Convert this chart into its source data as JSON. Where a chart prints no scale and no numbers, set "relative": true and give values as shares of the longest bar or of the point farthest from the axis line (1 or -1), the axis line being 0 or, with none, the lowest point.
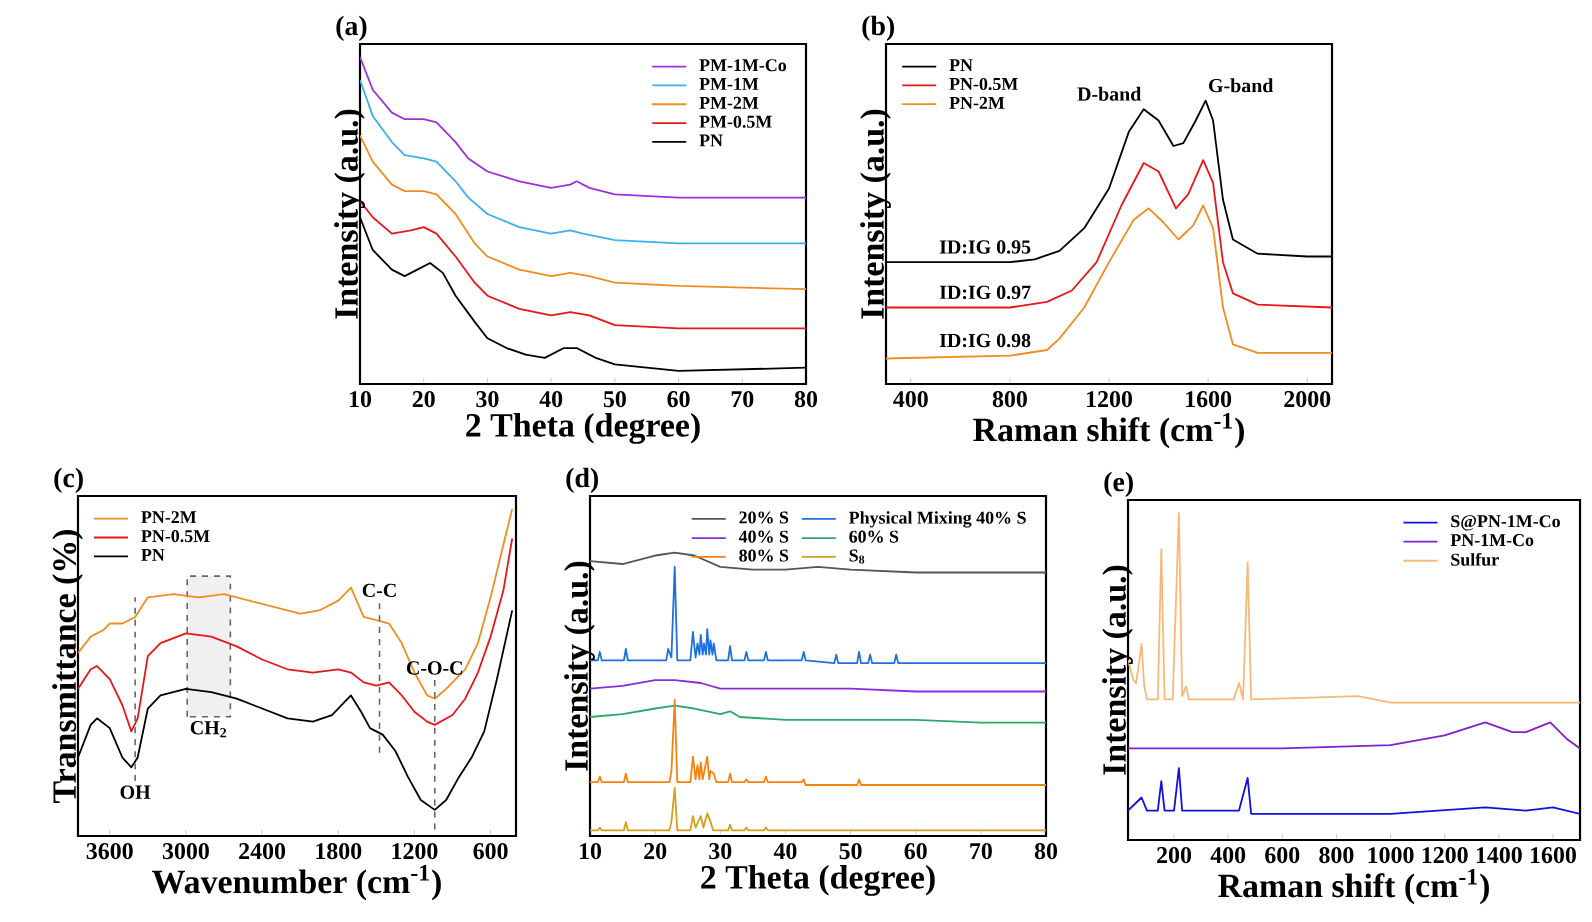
{
  "chart_data": [
    {
      "type": "line",
      "title": "(a)",
      "xlabel": "2 Theta (degree)",
      "ylabel": "Intensity (a.u.)",
      "relative": true,
      "xlim": [
        10,
        80
      ],
      "xticks": [
        10,
        20,
        30,
        40,
        50,
        60,
        70,
        80
      ],
      "legend": "top right",
      "series": [
        {
          "name": "PM-1M-Co",
          "color": "#9b30e0",
          "x": [
            10,
            12,
            15,
            17,
            20,
            22,
            25,
            27,
            30,
            35,
            40,
            43,
            44,
            46,
            50,
            60,
            70,
            80
          ],
          "values": [
            1.0,
            0.9,
            0.83,
            0.81,
            0.81,
            0.8,
            0.74,
            0.69,
            0.65,
            0.62,
            0.6,
            0.61,
            0.62,
            0.6,
            0.58,
            0.57,
            0.57,
            0.57
          ]
        },
        {
          "name": "PM-1M",
          "color": "#3ab0f0",
          "x": [
            10,
            12,
            15,
            17,
            20,
            22,
            25,
            27,
            30,
            35,
            40,
            43,
            45,
            50,
            60,
            80
          ],
          "values": [
            0.93,
            0.82,
            0.74,
            0.7,
            0.69,
            0.68,
            0.62,
            0.57,
            0.52,
            0.48,
            0.46,
            0.47,
            0.46,
            0.44,
            0.43,
            0.43
          ]
        },
        {
          "name": "PM-2M",
          "color": "#f28c1e",
          "x": [
            10,
            12,
            15,
            17,
            20,
            22,
            25,
            28,
            30,
            35,
            40,
            43,
            46,
            50,
            60,
            80
          ],
          "values": [
            0.76,
            0.68,
            0.61,
            0.59,
            0.59,
            0.58,
            0.52,
            0.43,
            0.39,
            0.35,
            0.33,
            0.34,
            0.33,
            0.31,
            0.3,
            0.29
          ]
        },
        {
          "name": "PM-0.5M",
          "color": "#e8161a",
          "x": [
            10,
            12,
            15,
            18,
            20,
            22,
            25,
            28,
            30,
            35,
            40,
            43,
            46,
            50,
            60,
            80
          ],
          "values": [
            0.56,
            0.51,
            0.46,
            0.47,
            0.48,
            0.46,
            0.39,
            0.31,
            0.27,
            0.23,
            0.21,
            0.22,
            0.21,
            0.18,
            0.17,
            0.17
          ]
        },
        {
          "name": "PN",
          "color": "#000000",
          "x": [
            10,
            12,
            15,
            17,
            19,
            21,
            23,
            25,
            28,
            30,
            33,
            36,
            39,
            42,
            44,
            47,
            50,
            60,
            80
          ],
          "values": [
            0.51,
            0.41,
            0.35,
            0.33,
            0.35,
            0.37,
            0.34,
            0.27,
            0.19,
            0.14,
            0.11,
            0.09,
            0.08,
            0.11,
            0.11,
            0.08,
            0.06,
            0.04,
            0.05
          ]
        }
      ]
    },
    {
      "type": "line",
      "title": "(b)",
      "xlabel": "Raman shift (cm$^{-1}$)",
      "ylabel": "Intensity (a.u.)",
      "relative": true,
      "xlim": [
        300,
        2100
      ],
      "xticks": [
        400,
        800,
        1200,
        1600,
        2000
      ],
      "legend": "top left",
      "annotations": [
        {
          "text": "D-band",
          "x": 1340,
          "y": 0.97
        },
        {
          "text": "G-band",
          "x": 1590,
          "y": 1.0
        },
        {
          "text": "ID:IG  0.95",
          "x": 700,
          "y": 0.43
        },
        {
          "text": "ID:IG  0.97",
          "x": 700,
          "y": 0.27
        },
        {
          "text": "ID:IG  0.98",
          "x": 700,
          "y": 0.1
        }
      ],
      "series": [
        {
          "name": "PN",
          "color": "#000000",
          "x": [
            300,
            600,
            800,
            900,
            1000,
            1100,
            1200,
            1280,
            1340,
            1400,
            1460,
            1500,
            1550,
            1590,
            1620,
            1660,
            1700,
            1800,
            2000,
            2100
          ],
          "values": [
            0.43,
            0.43,
            0.43,
            0.44,
            0.47,
            0.55,
            0.69,
            0.89,
            0.97,
            0.93,
            0.84,
            0.85,
            0.93,
            1.0,
            0.93,
            0.65,
            0.51,
            0.46,
            0.45,
            0.45
          ]
        },
        {
          "name": "PN-0.5M",
          "color": "#e8161a",
          "x": [
            300,
            800,
            950,
            1050,
            1150,
            1250,
            1340,
            1400,
            1470,
            1520,
            1580,
            1620,
            1660,
            1700,
            1800,
            2100
          ],
          "values": [
            0.27,
            0.27,
            0.29,
            0.33,
            0.43,
            0.63,
            0.78,
            0.75,
            0.62,
            0.67,
            0.79,
            0.71,
            0.43,
            0.32,
            0.28,
            0.27
          ]
        },
        {
          "name": "PN-2M",
          "color": "#f28c1e",
          "x": [
            300,
            800,
            950,
            1000,
            1100,
            1200,
            1300,
            1360,
            1420,
            1480,
            1540,
            1580,
            1620,
            1660,
            1700,
            1800,
            2100
          ],
          "values": [
            0.09,
            0.1,
            0.12,
            0.16,
            0.27,
            0.43,
            0.58,
            0.62,
            0.57,
            0.51,
            0.56,
            0.63,
            0.55,
            0.27,
            0.14,
            0.11,
            0.11
          ]
        }
      ]
    },
    {
      "type": "line",
      "title": "(c)",
      "xlabel": "Wavenumber (cm$^{-1}$)",
      "ylabel": "Transmittance (%)",
      "relative": true,
      "xlim": [
        3850,
        400
      ],
      "xticks": [
        3600,
        3000,
        2400,
        1800,
        1200,
        600
      ],
      "legend": "top left",
      "ref_lines": [
        {
          "axis": "x",
          "value": 3400,
          "label": "OH",
          "color": "#666666",
          "line_style": "dashed"
        },
        {
          "axis": "x",
          "value": 1475,
          "label": "C-C",
          "color": "#666666",
          "line_style": "dashed"
        },
        {
          "axis": "x",
          "value": 1040,
          "label": "C-O-C",
          "color": "#666666",
          "line_style": "dashed"
        }
      ],
      "bands": [
        {
          "axis": "x",
          "from": 2990,
          "to": 2650,
          "label": "CH$_{2}$",
          "color": "#666666"
        }
      ],
      "series": [
        {
          "name": "PN-2M",
          "color": "#f28c1e",
          "x": [
            3850,
            3750,
            3650,
            3600,
            3500,
            3400,
            3300,
            3100,
            2900,
            2700,
            2500,
            2300,
            2100,
            1950,
            1800,
            1700,
            1600,
            1500,
            1400,
            1300,
            1200,
            1100,
            1040,
            950,
            800,
            700,
            600,
            500,
            430
          ],
          "values": [
            0.56,
            0.61,
            0.63,
            0.65,
            0.65,
            0.67,
            0.73,
            0.74,
            0.73,
            0.74,
            0.72,
            0.7,
            0.68,
            0.69,
            0.72,
            0.76,
            0.67,
            0.66,
            0.65,
            0.59,
            0.5,
            0.43,
            0.42,
            0.45,
            0.51,
            0.59,
            0.73,
            0.89,
            1.0
          ]
        },
        {
          "name": "PN-0.5M",
          "color": "#e8161a",
          "x": [
            3850,
            3750,
            3700,
            3600,
            3500,
            3430,
            3380,
            3300,
            3200,
            3000,
            2800,
            2600,
            2400,
            2200,
            2000,
            1800,
            1700,
            1600,
            1500,
            1400,
            1300,
            1200,
            1100,
            1040,
            900,
            800,
            700,
            600,
            500,
            430
          ],
          "values": [
            0.45,
            0.51,
            0.52,
            0.48,
            0.4,
            0.32,
            0.36,
            0.55,
            0.59,
            0.62,
            0.61,
            0.58,
            0.54,
            0.51,
            0.5,
            0.51,
            0.5,
            0.47,
            0.46,
            0.47,
            0.43,
            0.38,
            0.35,
            0.34,
            0.37,
            0.42,
            0.5,
            0.61,
            0.75,
            0.91
          ]
        },
        {
          "name": "PN",
          "color": "#000000",
          "x": [
            3850,
            3750,
            3700,
            3600,
            3500,
            3430,
            3380,
            3300,
            3200,
            3000,
            2800,
            2600,
            2400,
            2200,
            2000,
            1850,
            1700,
            1620,
            1550,
            1450,
            1350,
            1250,
            1150,
            1040,
            950,
            850,
            750,
            650,
            550,
            430
          ],
          "values": [
            0.24,
            0.34,
            0.36,
            0.33,
            0.24,
            0.21,
            0.24,
            0.39,
            0.43,
            0.45,
            0.44,
            0.42,
            0.39,
            0.36,
            0.35,
            0.37,
            0.43,
            0.38,
            0.33,
            0.31,
            0.26,
            0.18,
            0.11,
            0.08,
            0.11,
            0.18,
            0.24,
            0.32,
            0.48,
            0.69
          ]
        }
      ]
    },
    {
      "type": "line",
      "title": "(d)",
      "xlabel": "2 Theta (degree)",
      "ylabel": "Intensity (a.u.)",
      "relative": true,
      "xlim": [
        10,
        80
      ],
      "xticks": [
        10,
        20,
        30,
        40,
        50,
        60,
        70,
        80
      ],
      "legend": "top right",
      "series": [
        {
          "name": "20% S",
          "color": "#555555",
          "x": [
            10,
            15,
            20,
            23,
            26,
            30,
            35,
            40,
            45,
            50,
            60,
            70,
            80
          ],
          "values": [
            0.97,
            0.96,
            0.99,
            1.0,
            0.99,
            0.95,
            0.94,
            0.94,
            0.95,
            0.94,
            0.93,
            0.93,
            0.93
          ]
        },
        {
          "name": "Physical Mixing 40% S",
          "color": "#1f6fe0",
          "x": [
            10,
            11.2,
            11.5,
            11.8,
            15.2,
            15.5,
            15.8,
            21.7,
            22,
            22.5,
            23,
            23.4,
            25.4,
            25.8,
            26.2,
            26.5,
            26.8,
            27,
            27.3,
            27.5,
            27.8,
            28,
            28.3,
            28.5,
            28.8,
            29,
            29.4,
            31.2,
            31.5,
            31.8,
            33.7,
            34,
            34.3,
            36.7,
            37,
            37.3,
            42.5,
            42.8,
            43.1,
            47.5,
            47.8,
            48.1,
            51,
            51.3,
            51.6,
            52.7,
            53,
            53.3,
            56.7,
            57,
            57.3,
            80
          ],
          "values": [
            0.62,
            0.62,
            0.65,
            0.62,
            0.62,
            0.66,
            0.62,
            0.62,
            0.66,
            0.63,
            0.95,
            0.62,
            0.62,
            0.72,
            0.63,
            0.68,
            0.64,
            0.71,
            0.64,
            0.68,
            0.64,
            0.73,
            0.64,
            0.69,
            0.64,
            0.68,
            0.62,
            0.62,
            0.67,
            0.62,
            0.62,
            0.65,
            0.62,
            0.62,
            0.65,
            0.62,
            0.62,
            0.65,
            0.62,
            0.61,
            0.64,
            0.61,
            0.61,
            0.65,
            0.61,
            0.61,
            0.64,
            0.61,
            0.61,
            0.64,
            0.61,
            0.61
          ]
        },
        {
          "name": "40% S",
          "color": "#8a2be2",
          "x": [
            10,
            15,
            20,
            23,
            27,
            30,
            35,
            40,
            50,
            60,
            80
          ],
          "values": [
            0.52,
            0.53,
            0.55,
            0.55,
            0.54,
            0.52,
            0.52,
            0.52,
            0.52,
            0.51,
            0.51
          ]
        },
        {
          "name": "60% S",
          "color": "#2ca868",
          "x": [
            10,
            15,
            20,
            23,
            26,
            30,
            31.5,
            33,
            40,
            50,
            60,
            70,
            80
          ],
          "values": [
            0.42,
            0.43,
            0.45,
            0.46,
            0.45,
            0.43,
            0.44,
            0.42,
            0.41,
            0.41,
            0.41,
            0.4,
            0.4
          ]
        },
        {
          "name": "80% S",
          "color": "#f7830f",
          "x": [
            10,
            11.2,
            11.5,
            11.8,
            15.2,
            15.5,
            15.8,
            22.2,
            22.5,
            23,
            23.4,
            25.4,
            25.8,
            26.2,
            26.5,
            26.8,
            27,
            27.3,
            28,
            28.3,
            28.5,
            29,
            29.4,
            31.2,
            31.5,
            31.8,
            33.7,
            34,
            34.3,
            36.7,
            37,
            37.3,
            42.5,
            42.8,
            43.1,
            51,
            51.3,
            51.6,
            80
          ],
          "values": [
            0.19,
            0.19,
            0.21,
            0.19,
            0.19,
            0.22,
            0.19,
            0.19,
            0.23,
            0.48,
            0.19,
            0.19,
            0.28,
            0.2,
            0.25,
            0.2,
            0.26,
            0.2,
            0.28,
            0.2,
            0.23,
            0.22,
            0.19,
            0.19,
            0.22,
            0.19,
            0.19,
            0.2,
            0.19,
            0.19,
            0.21,
            0.19,
            0.19,
            0.2,
            0.18,
            0.18,
            0.2,
            0.18,
            0.18
          ]
        },
        {
          "name": "S$_{8}$",
          "color": "#d4a017",
          "x": [
            10,
            11.2,
            11.5,
            11.8,
            15.2,
            15.5,
            15.8,
            22.2,
            22.5,
            23,
            23.4,
            25.4,
            25.8,
            26.2,
            27,
            27.4,
            28,
            28.5,
            28.9,
            31.2,
            31.5,
            31.8,
            33.7,
            34,
            34.3,
            36.7,
            37,
            37.3,
            80
          ],
          "values": [
            0.02,
            0.02,
            0.03,
            0.02,
            0.02,
            0.05,
            0.02,
            0.02,
            0.05,
            0.17,
            0.02,
            0.02,
            0.07,
            0.03,
            0.07,
            0.03,
            0.08,
            0.05,
            0.02,
            0.02,
            0.04,
            0.02,
            0.02,
            0.03,
            0.02,
            0.02,
            0.03,
            0.02,
            0.02
          ]
        }
      ]
    },
    {
      "type": "line",
      "title": "(e)",
      "xlabel": "Raman shift (cm$^{-1}$)",
      "ylabel": "Intensity (a.u.)",
      "relative": true,
      "xlim": [
        30,
        1700
      ],
      "xticks": [
        200,
        400,
        600,
        800,
        1000,
        1200,
        1400,
        1600
      ],
      "legend": "top right",
      "series": [
        {
          "name": "S@PN-1M-Co",
          "color": "#1010e0",
          "x": [
            30,
            80,
            100,
            140,
            153,
            165,
            200,
            218,
            230,
            440,
            472,
            485,
            1000,
            1350,
            1500,
            1600,
            1700
          ],
          "values": [
            0.09,
            0.13,
            0.09,
            0.09,
            0.18,
            0.09,
            0.09,
            0.22,
            0.09,
            0.09,
            0.19,
            0.08,
            0.08,
            0.1,
            0.09,
            0.1,
            0.08
          ]
        },
        {
          "name": "PN-1M-Co",
          "color": "#8020d0",
          "x": [
            30,
            200,
            600,
            1000,
            1200,
            1350,
            1450,
            1500,
            1590,
            1650,
            1700
          ],
          "values": [
            0.28,
            0.28,
            0.28,
            0.29,
            0.32,
            0.36,
            0.33,
            0.33,
            0.36,
            0.31,
            0.28
          ]
        },
        {
          "name": "Sulfur",
          "color": "#f9b878",
          "x": [
            30,
            50,
            60,
            80,
            90,
            100,
            140,
            153,
            165,
            195,
            218,
            230,
            245,
            255,
            420,
            440,
            455,
            472,
            485,
            880,
            1000,
            1700
          ],
          "values": [
            0.55,
            0.49,
            0.48,
            0.6,
            0.47,
            0.43,
            0.43,
            0.89,
            0.43,
            0.43,
            1.0,
            0.44,
            0.47,
            0.43,
            0.43,
            0.48,
            0.43,
            0.85,
            0.43,
            0.44,
            0.42,
            0.42
          ]
        }
      ]
    }
  ]
}
